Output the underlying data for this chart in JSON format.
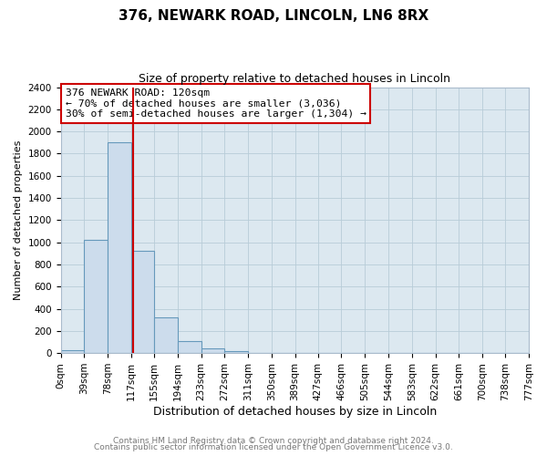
{
  "title": "376, NEWARK ROAD, LINCOLN, LN6 8RX",
  "subtitle": "Size of property relative to detached houses in Lincoln",
  "xlabel": "Distribution of detached houses by size in Lincoln",
  "ylabel": "Number of detached properties",
  "bin_edges": [
    0,
    39,
    78,
    117,
    155,
    194,
    233,
    272,
    311,
    350,
    389,
    427,
    466,
    505,
    544,
    583,
    622,
    661,
    700,
    738,
    777
  ],
  "bar_heights": [
    25,
    1020,
    1900,
    920,
    320,
    105,
    45,
    20,
    0,
    0,
    0,
    0,
    0,
    0,
    0,
    0,
    0,
    0,
    0,
    0
  ],
  "tick_labels": [
    "0sqm",
    "39sqm",
    "78sqm",
    "117sqm",
    "155sqm",
    "194sqm",
    "233sqm",
    "272sqm",
    "311sqm",
    "350sqm",
    "389sqm",
    "427sqm",
    "466sqm",
    "505sqm",
    "544sqm",
    "583sqm",
    "622sqm",
    "661sqm",
    "700sqm",
    "738sqm",
    "777sqm"
  ],
  "bar_color": "#ccdcec",
  "bar_edge_color": "#6699bb",
  "property_line_x": 120,
  "property_line_color": "#cc0000",
  "annotation_line1": "376 NEWARK ROAD: 120sqm",
  "annotation_line2": "← 70% of detached houses are smaller (3,036)",
  "annotation_line3": "30% of semi-detached houses are larger (1,304) →",
  "annotation_box_color": "#ffffff",
  "annotation_box_edge": "#cc0000",
  "ylim": [
    0,
    2400
  ],
  "yticks": [
    0,
    200,
    400,
    600,
    800,
    1000,
    1200,
    1400,
    1600,
    1800,
    2000,
    2200,
    2400
  ],
  "footer1": "Contains HM Land Registry data © Crown copyright and database right 2024.",
  "footer2": "Contains public sector information licensed under the Open Government Licence v3.0.",
  "figure_bg": "#ffffff",
  "axes_bg": "#dce8f0",
  "grid_color": "#b8ccd8",
  "title_fontsize": 11,
  "subtitle_fontsize": 9,
  "ylabel_fontsize": 8,
  "xlabel_fontsize": 9,
  "tick_fontsize": 7.5,
  "footer_fontsize": 6.5,
  "footer_color": "#777777"
}
